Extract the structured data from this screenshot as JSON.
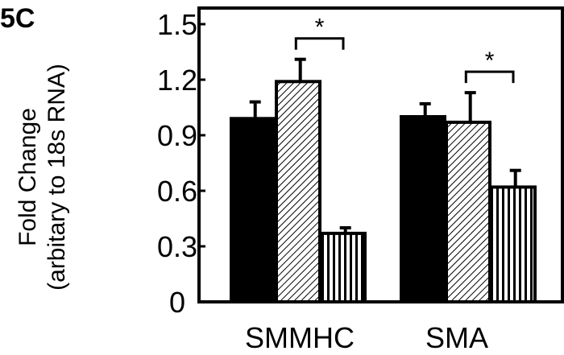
{
  "panel_label": "5C",
  "chart_data": {
    "type": "bar",
    "title": "",
    "xlabel": "",
    "ylabel_line1": "Fold Change",
    "ylabel_line2": "(arbitary to 18s RNA)",
    "ylim": [
      0,
      1.5
    ],
    "yticks": [
      0,
      0.3,
      0.6,
      0.9,
      1.2,
      1.5
    ],
    "ytick_labels": [
      "0",
      "0.3",
      "0.6",
      "0.9",
      "1.2",
      "1.5"
    ],
    "categories": [
      "SMMHC",
      "SMA"
    ],
    "series": [
      {
        "values": [
          0.99,
          1.0
        ],
        "errors": [
          0.09,
          0.07
        ],
        "fill": "solid",
        "color": "#000000"
      },
      {
        "values": [
          1.19,
          0.97
        ],
        "errors": [
          0.12,
          0.16
        ],
        "fill": "diagonal-hatch",
        "color": "#000000"
      },
      {
        "values": [
          0.37,
          0.62
        ],
        "errors": [
          0.03,
          0.09
        ],
        "fill": "vertical-stripes",
        "color": "#000000"
      }
    ],
    "significance": [
      {
        "category": 0,
        "from_series": 1,
        "to_series": 2,
        "label": "*"
      },
      {
        "category": 1,
        "from_series": 1,
        "to_series": 2,
        "label": "*"
      }
    ],
    "grid": false,
    "legend": "none"
  }
}
